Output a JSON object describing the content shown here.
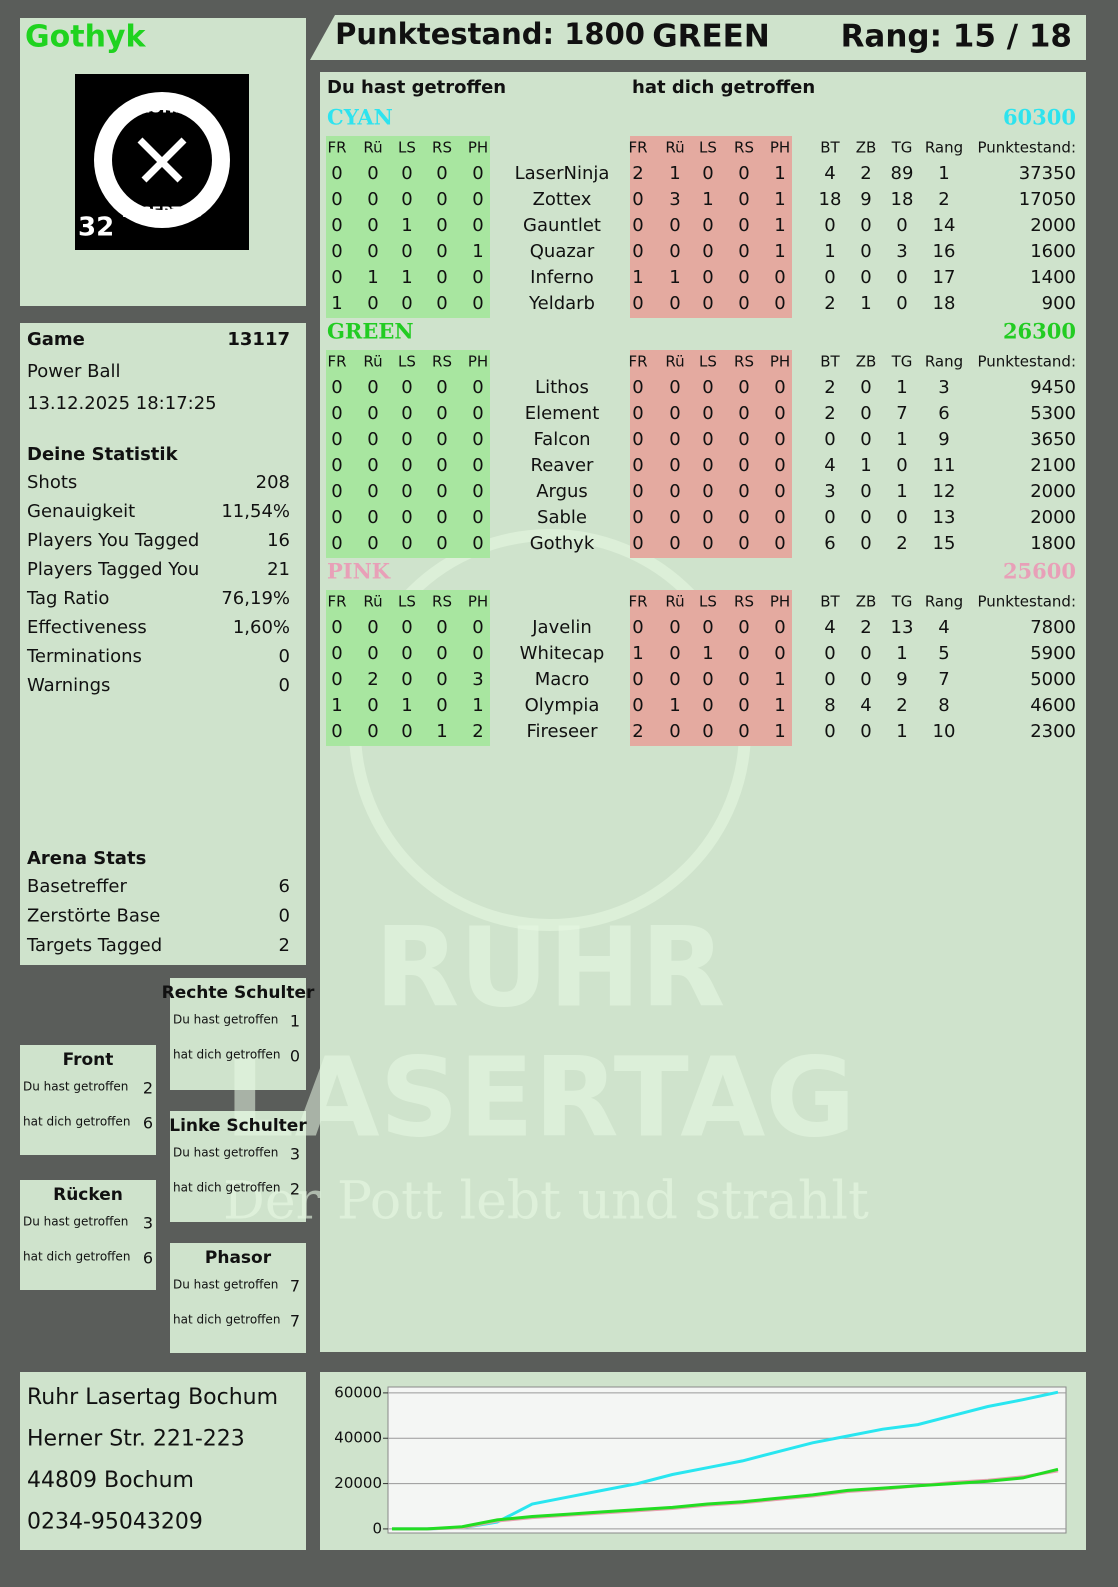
{
  "header": {
    "player": "Gothyk",
    "score": "Punktestand: 1800",
    "team": "GREEN",
    "rank": "Rang: 15 / 18"
  },
  "logo": {
    "top": "RUHR",
    "bottom": "LASERTAG",
    "number": "32"
  },
  "game": {
    "label": "Game",
    "id": "13117",
    "mode": "Power Ball",
    "date": "13.12.2025 18:17:25"
  },
  "stats": {
    "title": "Deine Statistik",
    "rows": [
      [
        "Shots",
        "208"
      ],
      [
        "Genauigkeit",
        "11,54%"
      ],
      [
        "Players You Tagged",
        "16"
      ],
      [
        "Players Tagged You",
        "21"
      ],
      [
        "Tag Ratio",
        "76,19%"
      ],
      [
        "Effectiveness",
        "1,60%"
      ],
      [
        "Terminations",
        "0"
      ],
      [
        "Warnings",
        "0"
      ]
    ]
  },
  "arena": {
    "title": "Arena Stats",
    "rows": [
      [
        "Basetreffer",
        "6"
      ],
      [
        "Zerstörte Base",
        "0"
      ],
      [
        "Targets Tagged",
        "2"
      ]
    ]
  },
  "zones": [
    {
      "title": "Rechte Schulter",
      "rows": [
        [
          "Du hast getroffen",
          "1"
        ],
        [
          "hat dich getroffen",
          "0"
        ]
      ]
    },
    {
      "title": "Front",
      "rows": [
        [
          "Du hast getroffen",
          "2"
        ],
        [
          "hat dich getroffen",
          "6"
        ]
      ]
    },
    {
      "title": "Linke Schulter",
      "rows": [
        [
          "Du hast getroffen",
          "3"
        ],
        [
          "hat dich getroffen",
          "2"
        ]
      ]
    },
    {
      "title": "Rücken",
      "rows": [
        [
          "Du hast getroffen",
          "3"
        ],
        [
          "hat dich getroffen",
          "6"
        ]
      ]
    },
    {
      "title": "Phasor",
      "rows": [
        [
          "Du hast getroffen",
          "7"
        ],
        [
          "hat dich getroffen",
          "7"
        ]
      ]
    }
  ],
  "address": [
    "Ruhr Lasertag Bochum",
    "Herner Str. 221-223",
    "44809 Bochum",
    "0234-95043209"
  ],
  "watermark": [
    "RUHR",
    "LASERTAG",
    "Der Pott lebt und strahlt"
  ],
  "table": {
    "you_hit": "Du hast getroffen",
    "hit_you": "hat dich getroffen",
    "hit_columns": [
      "FR",
      "Rü",
      "LS",
      "RS",
      "PH"
    ],
    "stat_columns": [
      "BT",
      "ZB",
      "TG",
      "Rang",
      "Punktestand:"
    ],
    "teams": [
      {
        "name": "CYAN",
        "score": "60300",
        "color": "#2ee3ee",
        "rows": [
          [
            0,
            0,
            0,
            0,
            0,
            "LaserNinja",
            2,
            1,
            0,
            0,
            1,
            4,
            2,
            89,
            1,
            37350
          ],
          [
            0,
            0,
            0,
            0,
            0,
            "Zottex",
            0,
            3,
            1,
            0,
            1,
            18,
            9,
            18,
            2,
            17050
          ],
          [
            0,
            0,
            1,
            0,
            0,
            "Gauntlet",
            0,
            0,
            0,
            0,
            1,
            0,
            0,
            0,
            14,
            2000
          ],
          [
            0,
            0,
            0,
            0,
            1,
            "Quazar",
            0,
            0,
            0,
            0,
            1,
            1,
            0,
            3,
            16,
            1600
          ],
          [
            0,
            1,
            1,
            0,
            0,
            "Inferno",
            1,
            1,
            0,
            0,
            0,
            0,
            0,
            0,
            17,
            1400
          ],
          [
            1,
            0,
            0,
            0,
            0,
            "Yeldarb",
            0,
            0,
            0,
            0,
            0,
            2,
            1,
            0,
            18,
            900
          ]
        ]
      },
      {
        "name": "GREEN",
        "score": "26300",
        "color": "#22cc22",
        "rows": [
          [
            0,
            0,
            0,
            0,
            0,
            "Lithos",
            0,
            0,
            0,
            0,
            0,
            2,
            0,
            1,
            3,
            9450
          ],
          [
            0,
            0,
            0,
            0,
            0,
            "Element",
            0,
            0,
            0,
            0,
            0,
            2,
            0,
            7,
            6,
            5300
          ],
          [
            0,
            0,
            0,
            0,
            0,
            "Falcon",
            0,
            0,
            0,
            0,
            0,
            0,
            0,
            1,
            9,
            3650
          ],
          [
            0,
            0,
            0,
            0,
            0,
            "Reaver",
            0,
            0,
            0,
            0,
            0,
            4,
            1,
            0,
            11,
            2100
          ],
          [
            0,
            0,
            0,
            0,
            0,
            "Argus",
            0,
            0,
            0,
            0,
            0,
            3,
            0,
            1,
            12,
            2000
          ],
          [
            0,
            0,
            0,
            0,
            0,
            "Sable",
            0,
            0,
            0,
            0,
            0,
            0,
            0,
            0,
            13,
            2000
          ],
          [
            0,
            0,
            0,
            0,
            0,
            "Gothyk",
            0,
            0,
            0,
            0,
            0,
            6,
            0,
            2,
            15,
            1800
          ]
        ]
      },
      {
        "name": "PINK",
        "score": "25600",
        "color": "#e8a0b8",
        "rows": [
          [
            0,
            0,
            0,
            0,
            0,
            "Javelin",
            0,
            0,
            0,
            0,
            0,
            4,
            2,
            13,
            4,
            7800
          ],
          [
            0,
            0,
            0,
            0,
            0,
            "Whitecap",
            1,
            0,
            1,
            0,
            0,
            0,
            0,
            1,
            5,
            5900
          ],
          [
            0,
            2,
            0,
            0,
            3,
            "Macro",
            0,
            0,
            0,
            0,
            1,
            0,
            0,
            9,
            7,
            5000
          ],
          [
            1,
            0,
            1,
            0,
            1,
            "Olympia",
            0,
            1,
            0,
            0,
            1,
            8,
            4,
            2,
            8,
            4600
          ],
          [
            0,
            0,
            0,
            1,
            2,
            "Fireseer",
            2,
            0,
            0,
            0,
            1,
            0,
            0,
            1,
            10,
            2300
          ]
        ]
      }
    ]
  },
  "score_chart": {
    "type": "line",
    "ylim": [
      -1800,
      62600
    ],
    "yticks": [
      0,
      20000,
      40000,
      60000
    ],
    "grid": true,
    "series": [
      {
        "color": "#29e6f0",
        "values": [
          0,
          0,
          500,
          3000,
          11000,
          14000,
          17000,
          20000,
          24000,
          27000,
          30000,
          34000,
          38000,
          41000,
          44000,
          46000,
          50000,
          54000,
          57000,
          60300
        ]
      },
      {
        "color": "#e8a0b0",
        "values": [
          0,
          0,
          500,
          3500,
          5000,
          6000,
          7000,
          8000,
          9000,
          10500,
          11500,
          13000,
          14500,
          16500,
          17500,
          19000,
          20500,
          21500,
          23000,
          25600
        ]
      },
      {
        "color": "#22dd22",
        "values": [
          0,
          0,
          1000,
          4000,
          5500,
          6500,
          7500,
          8500,
          9500,
          11000,
          12000,
          13500,
          15000,
          17000,
          18000,
          19000,
          20000,
          21000,
          22500,
          26300
        ]
      }
    ]
  }
}
